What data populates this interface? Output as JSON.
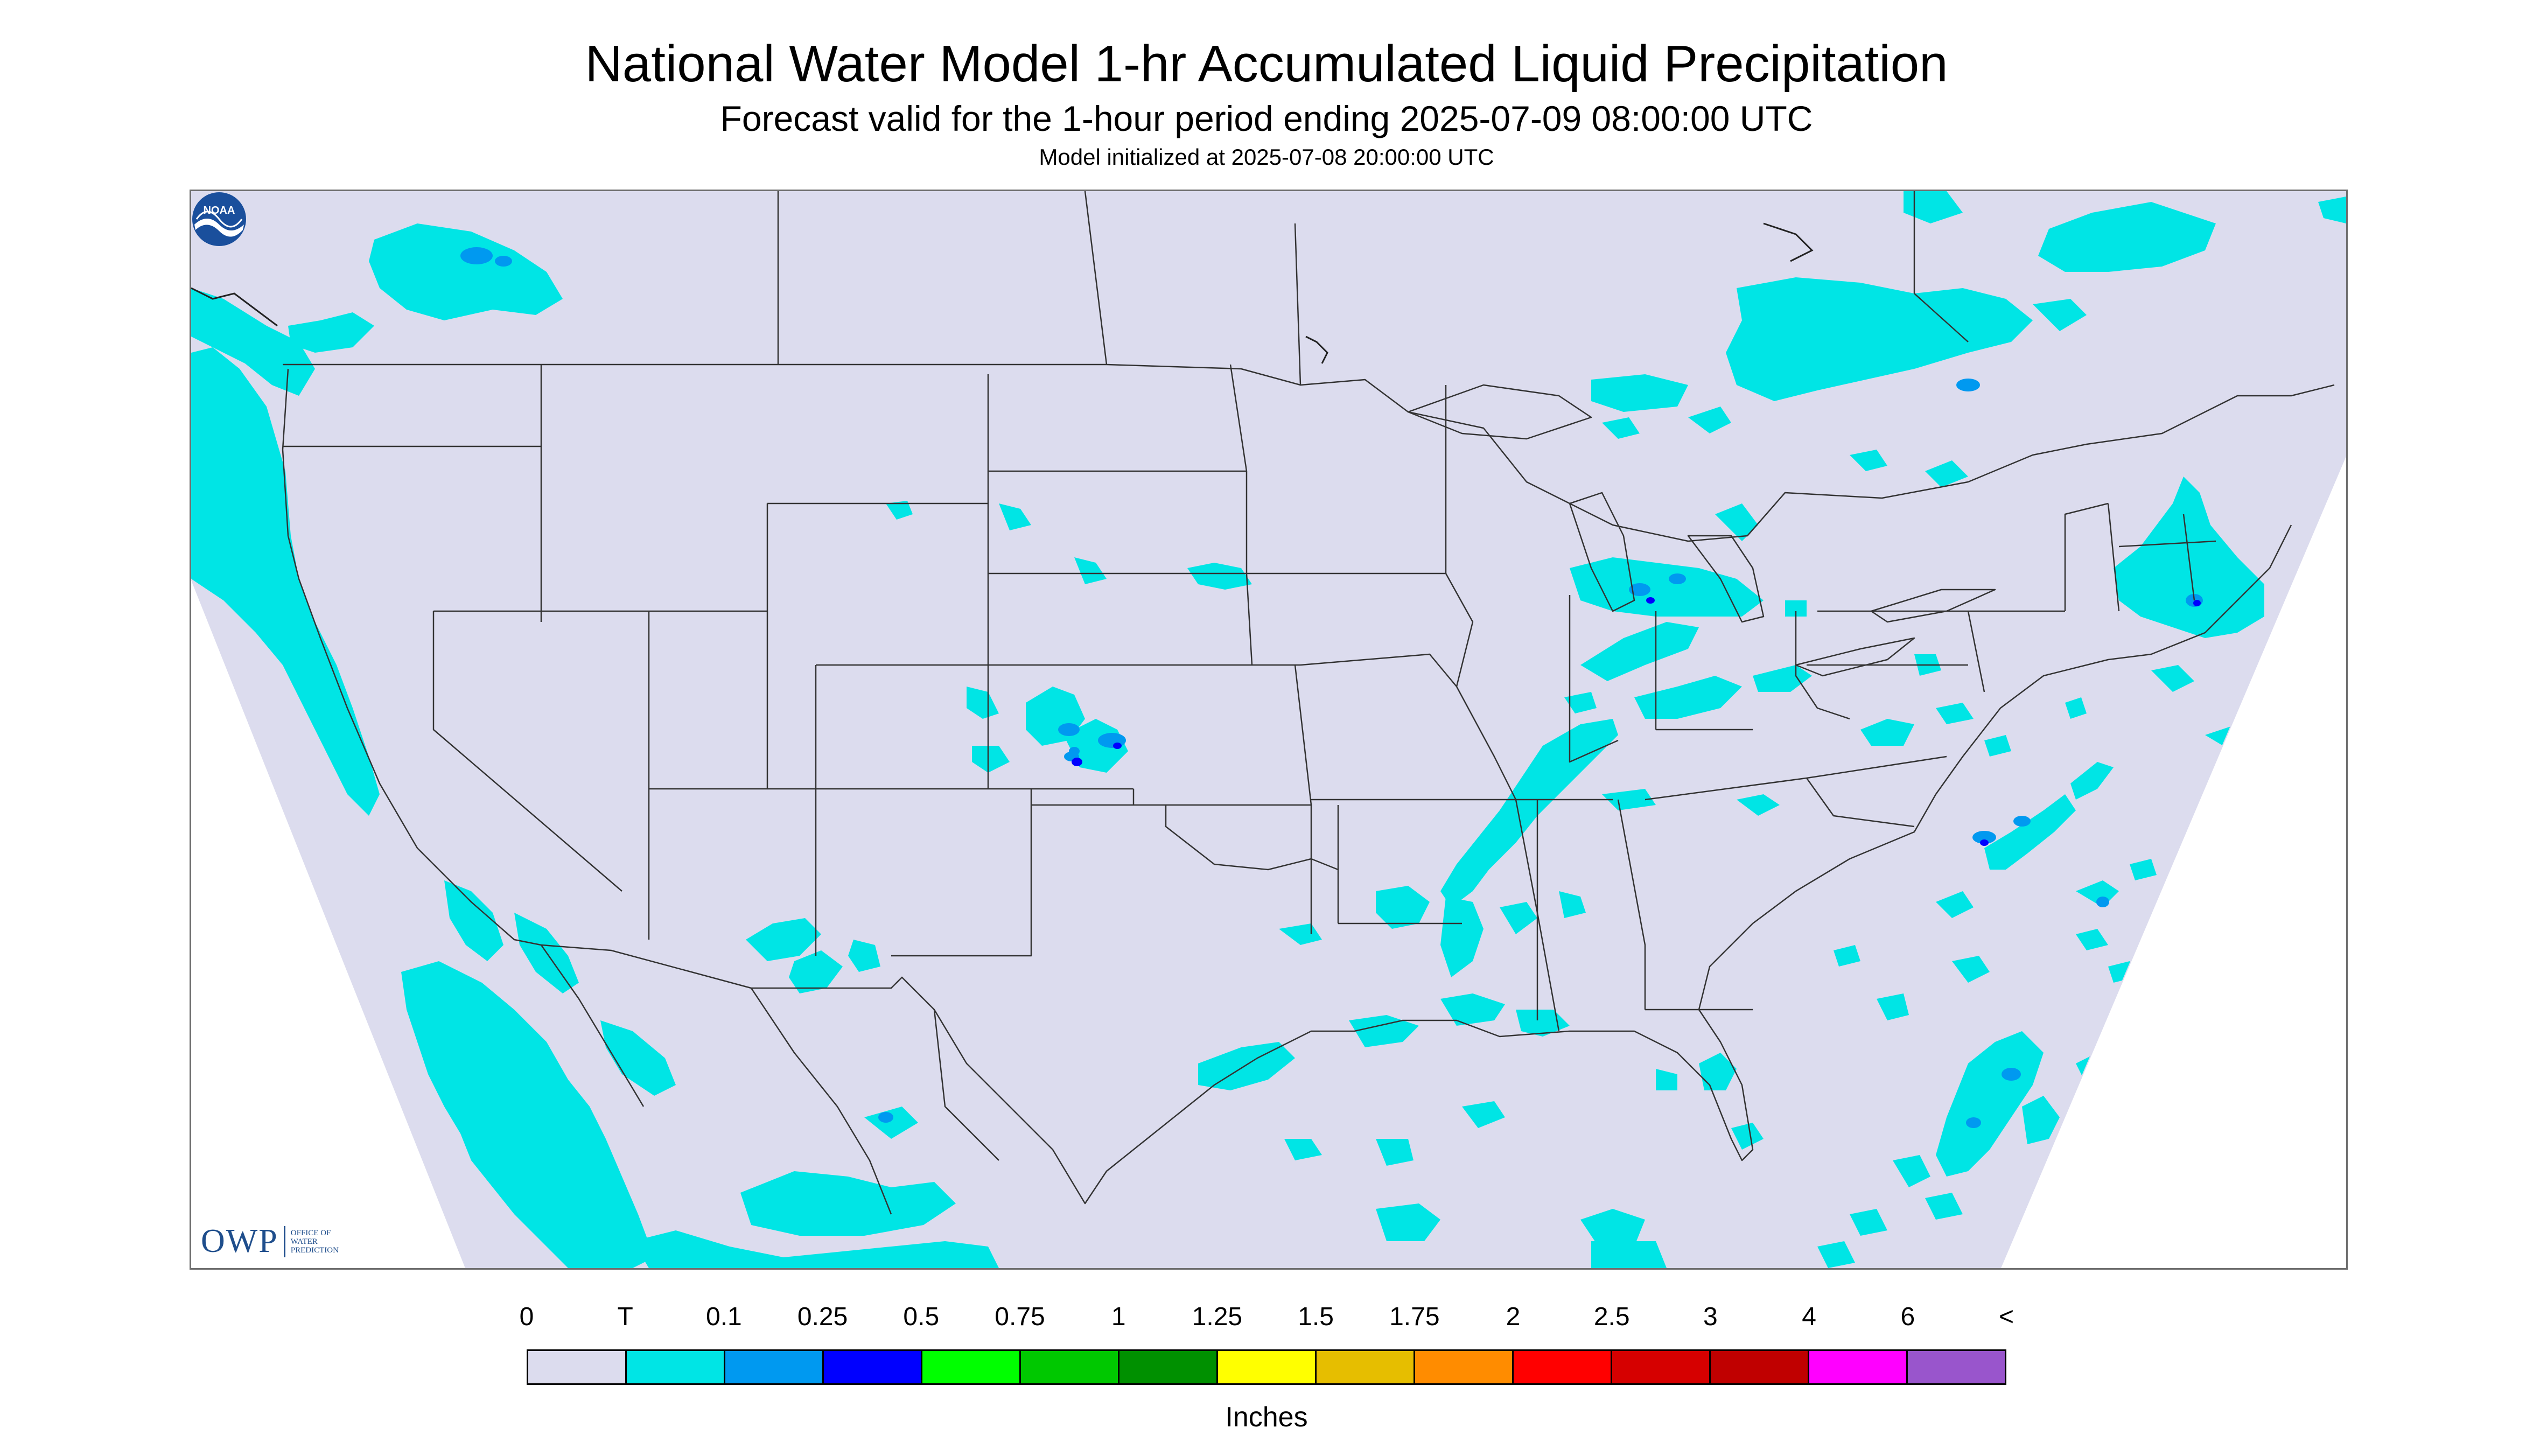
{
  "header": {
    "title": "National Water Model 1-hr Accumulated Liquid Precipitation",
    "subtitle": "Forecast valid for the 1-hour period ending 2025-07-09 08:00:00 UTC",
    "init": "Model initialized at 2025-07-08 20:00:00 UTC"
  },
  "map": {
    "background_color": "#dcdcee",
    "offgrid_color": "#ffffff",
    "boundary_color": "#333333",
    "precip_trace_color": "#00e5e5",
    "precip_blue_color": "#0099f0",
    "precip_dark_color": "#0000ff"
  },
  "logos": {
    "owp_letters": "OWP",
    "owp_name": "OFFICE OF WATER PREDICTION",
    "noaa_text": "NOAA"
  },
  "legend": {
    "labels": [
      "0",
      "T",
      "0.1",
      "0.25",
      "0.5",
      "0.75",
      "1",
      "1.25",
      "1.5",
      "1.75",
      "2",
      "2.5",
      "3",
      "4",
      "6",
      "<"
    ],
    "colors": [
      "#dcdcee",
      "#00e5e5",
      "#0099f0",
      "#0000ff",
      "#00ff00",
      "#00c800",
      "#009000",
      "#ffff00",
      "#e6be00",
      "#ff8c00",
      "#ff0000",
      "#d60000",
      "#c00000",
      "#ff00ff",
      "#9955cc"
    ],
    "units": "Inches"
  }
}
